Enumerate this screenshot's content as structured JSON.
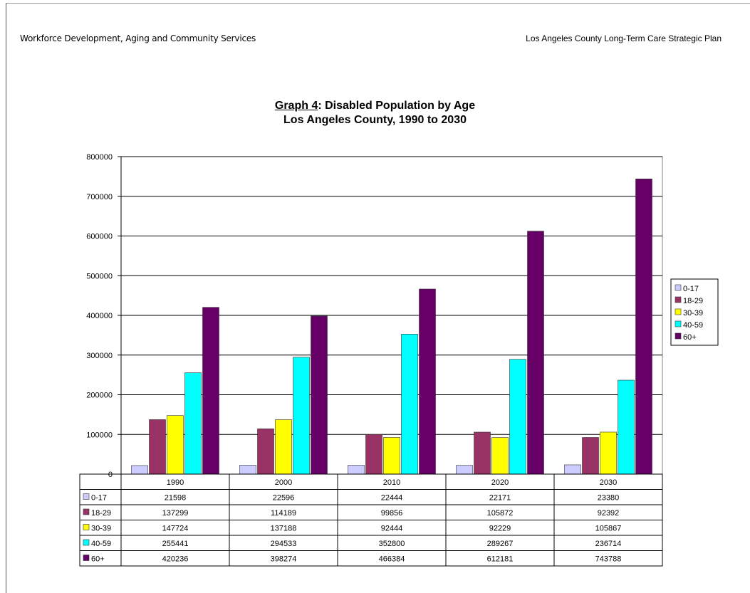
{
  "header": {
    "left": "Workforce Development, Aging and Community Services",
    "right": "Los Angeles County Long-Term Care Strategic Plan"
  },
  "chart_data": {
    "type": "bar",
    "title_prefix": "Graph 4",
    "title_rest": ":  Disabled Population by Age",
    "subtitle": "Los Angeles County, 1990 to 2030",
    "categories": [
      "1990",
      "2000",
      "2010",
      "2020",
      "2030"
    ],
    "y_ticks": [
      "800000",
      "700000",
      "600000",
      "500000",
      "400000",
      "300000",
      "200000",
      "100000",
      "0"
    ],
    "ylim": [
      0,
      800000
    ],
    "grid": true,
    "legend_position": "right",
    "series": [
      {
        "name": "0-17",
        "color": "#ccccff",
        "values": [
          21598,
          22596,
          22444,
          22171,
          23380
        ]
      },
      {
        "name": "18-29",
        "color": "#993366",
        "values": [
          137299,
          114189,
          99856,
          105872,
          92392
        ]
      },
      {
        "name": "30-39",
        "color": "#ffff00",
        "values": [
          147724,
          137188,
          92444,
          92229,
          105867
        ]
      },
      {
        "name": "40-59",
        "color": "#00ffff",
        "values": [
          255441,
          294533,
          352800,
          289267,
          236714
        ]
      },
      {
        "name": "60+",
        "color": "#660066",
        "values": [
          420236,
          398274,
          466384,
          612181,
          743788
        ]
      }
    ]
  }
}
